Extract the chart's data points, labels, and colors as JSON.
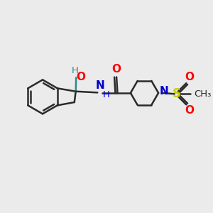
{
  "bg_color": "#ebebeb",
  "bond_color": "#2a2a2a",
  "bond_width": 1.8,
  "atom_colors": {
    "O": "#ff0000",
    "N": "#0000cc",
    "S": "#cccc00",
    "H_label": "#2a8a8a"
  },
  "font_size_atom": 11,
  "font_size_small": 9.5,
  "xlim": [
    0,
    10
  ],
  "ylim": [
    0,
    10
  ]
}
